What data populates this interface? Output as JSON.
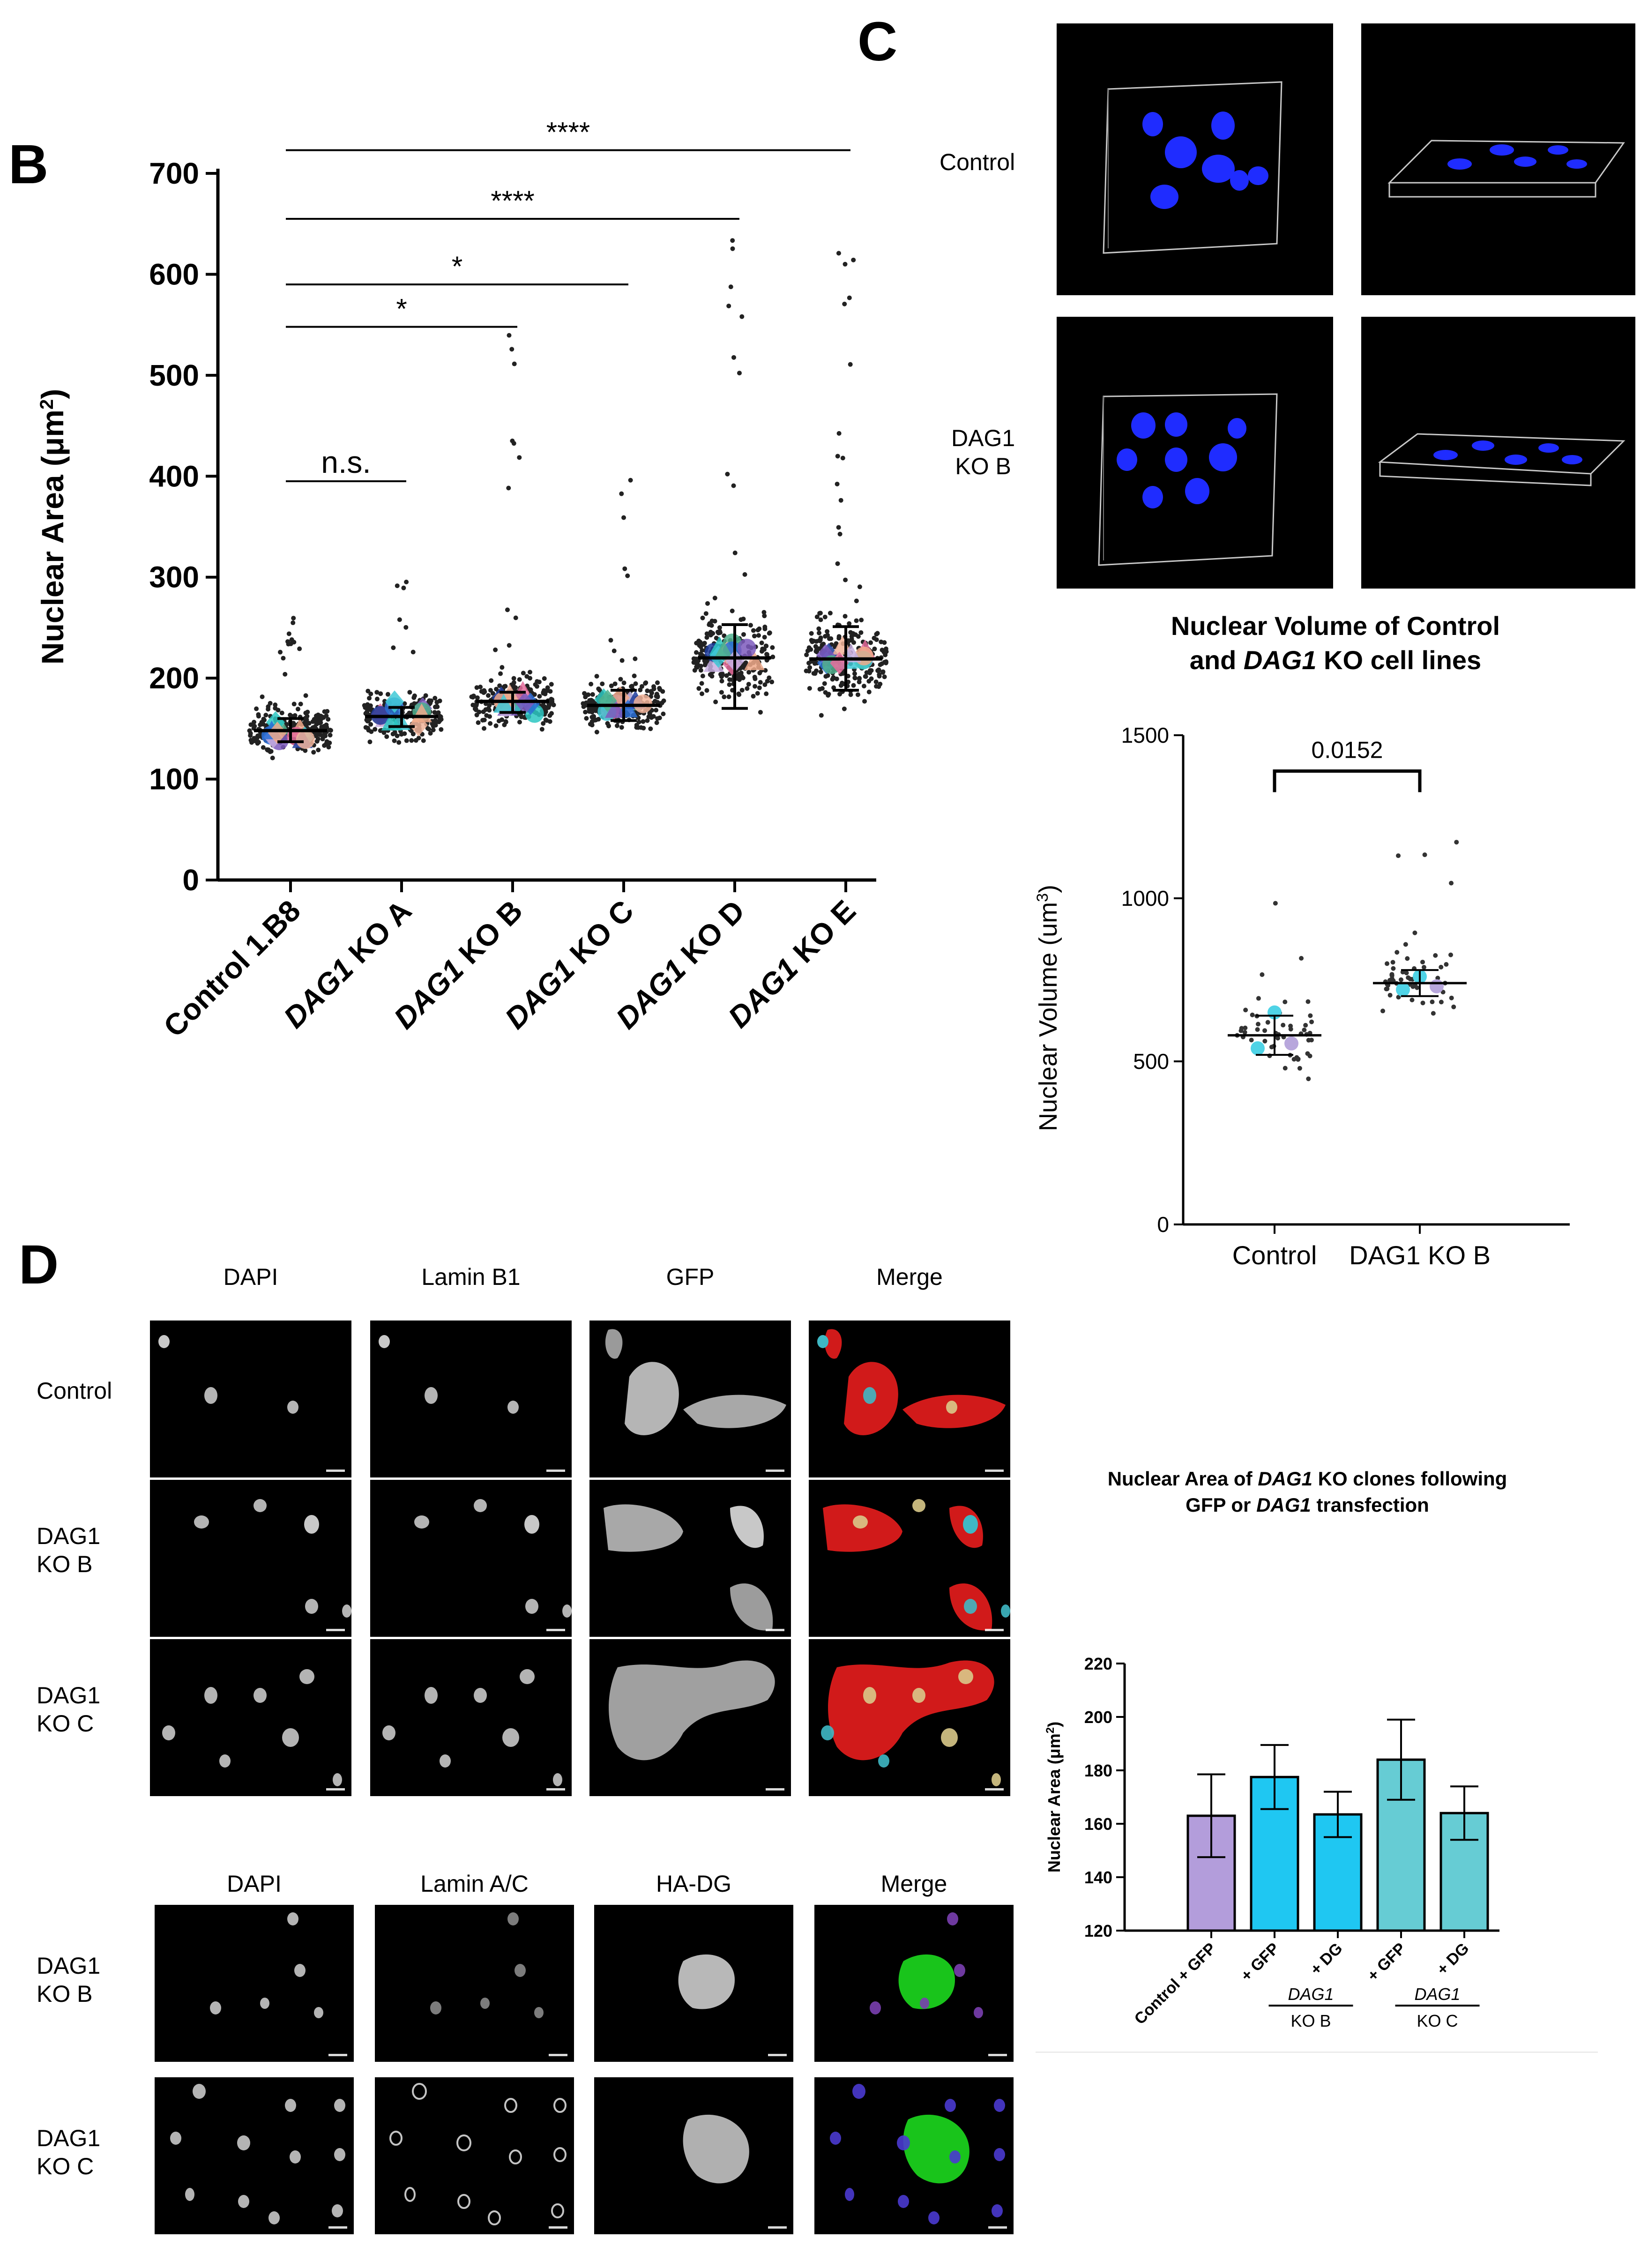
{
  "panels": {
    "b": {
      "letter": "B"
    },
    "c": {
      "letter": "C"
    },
    "d": {
      "letter": "D"
    }
  },
  "panel_c_images": {
    "row_labels": [
      "Control",
      "DAG1\nKO B"
    ]
  },
  "panel_d": {
    "top_columns": [
      "DAPI",
      "Lamin B1",
      "GFP",
      "Merge"
    ],
    "top_rows": [
      "Control",
      "DAG1\nKO B",
      "DAG1\nKO C"
    ],
    "bottom_columns": [
      "DAPI",
      "Lamin A/C",
      "HA-DG",
      "Merge"
    ],
    "bottom_rows": [
      "DAG1\nKO B",
      "DAG1\nKO C"
    ]
  },
  "colors": {
    "nuclei_blue": "#1f2cff",
    "gfp_red": "#d11a1a",
    "gfp_green": "#19c41b",
    "bar_purple": "#b39ddb",
    "bar_blue": "#1fc7f2",
    "bar_teal": "#66ccd4",
    "mean_cyan": "#4fd3e6",
    "mean_lilac": "#b8a7dc"
  },
  "chart_data": [
    {
      "id": "panel-b",
      "type": "scatter",
      "title": "",
      "ylabel": "Nuclear Area (μm²)",
      "ylabel_parts": [
        "Nuclear Area (",
        "μm",
        "2",
        ")"
      ],
      "ylim": [
        0,
        700
      ],
      "yticks": [
        0,
        100,
        200,
        300,
        400,
        500,
        600,
        700
      ],
      "categories": [
        "Control 1.B8",
        "DAG1 KO A",
        "DAG1 KO B",
        "DAG1 KO C",
        "DAG1 KO D",
        "DAG1 KO E"
      ],
      "category_labels": [
        {
          "prefix": "Control 1.B8",
          "italic": ""
        },
        {
          "italic": "DAG1",
          "suffix": " KO A"
        },
        {
          "italic": "DAG1",
          "suffix": " KO B"
        },
        {
          "italic": "DAG1",
          "suffix": " KO C"
        },
        {
          "italic": "DAG1",
          "suffix": " KO D"
        },
        {
          "italic": "DAG1",
          "suffix": " KO E"
        }
      ],
      "median": [
        148,
        162,
        177,
        173,
        220,
        219
      ],
      "error_low": [
        137,
        152,
        166,
        158,
        170,
        188
      ],
      "error_high": [
        160,
        171,
        186,
        188,
        253,
        251
      ],
      "spread": [
        [
          85,
          265
        ],
        [
          95,
          320
        ],
        [
          88,
          540
        ],
        [
          75,
          400
        ],
        [
          95,
          635
        ],
        [
          85,
          635
        ]
      ],
      "comparisons": [
        {
          "from": "Control 1.B8",
          "to": "DAG1 KO A",
          "label": "n.s.",
          "y": 395
        },
        {
          "from": "Control 1.B8",
          "to": "DAG1 KO B",
          "label": "*",
          "y": 548
        },
        {
          "from": "Control 1.B8",
          "to": "DAG1 KO C",
          "label": "*",
          "y": 590
        },
        {
          "from": "Control 1.B8",
          "to": "DAG1 KO D",
          "label": "****",
          "y": 655
        },
        {
          "from": "Control 1.B8",
          "to": "DAG1 KO E",
          "label": "****",
          "y": 723
        }
      ]
    },
    {
      "id": "panel-c-volume",
      "type": "scatter",
      "title": "Nuclear Volume of Control and DAG1 KO cell lines",
      "title_parts": [
        "Nuclear Volume of Control",
        "and ",
        "DAG1",
        " KO cell lines"
      ],
      "ylabel": "Nuclear Volume (um³)",
      "ylabel_parts": [
        "Nuclear Volume (um",
        "3",
        ")"
      ],
      "ylim": [
        0,
        1500
      ],
      "yticks": [
        0,
        500,
        1000,
        1500
      ],
      "categories": [
        "Control",
        "DAG1 KO B"
      ],
      "mean": [
        580,
        740
      ],
      "error_low": [
        520,
        700
      ],
      "error_high": [
        640,
        780
      ],
      "spread": [
        [
          390,
          1180
        ],
        [
          500,
          1220
        ]
      ],
      "replicate_means": [
        [
          540,
          650,
          555
        ],
        [
          720,
          760,
          730
        ]
      ],
      "comparison": {
        "label": "0.0152",
        "y": 1390
      }
    },
    {
      "id": "panel-d-bars",
      "type": "bar",
      "title": "Nuclear Area of DAG1 KO clones following GFP or DAG1 transfection",
      "title_parts": [
        "Nuclear Area of ",
        "DAG1",
        " KO clones following",
        "GFP or ",
        "DAG1",
        " transfection"
      ],
      "ylabel": "Nuclear Area (μm²)",
      "ylabel_parts": [
        "Nuclear Area (",
        "μm",
        "2",
        ")"
      ],
      "ylim": [
        120,
        220
      ],
      "yticks": [
        120,
        140,
        160,
        180,
        200,
        220
      ],
      "categories": [
        "Control + GFP",
        "+ GFP",
        "+ DG",
        "+ GFP",
        "+ DG"
      ],
      "values": [
        163,
        177.5,
        163.5,
        184,
        164
      ],
      "errors": [
        15.5,
        12,
        8.5,
        15,
        10
      ],
      "group_labels": [
        {
          "italic": "DAG1",
          "text": "KO B"
        },
        {
          "italic": "DAG1",
          "text": "KO C"
        }
      ]
    }
  ]
}
